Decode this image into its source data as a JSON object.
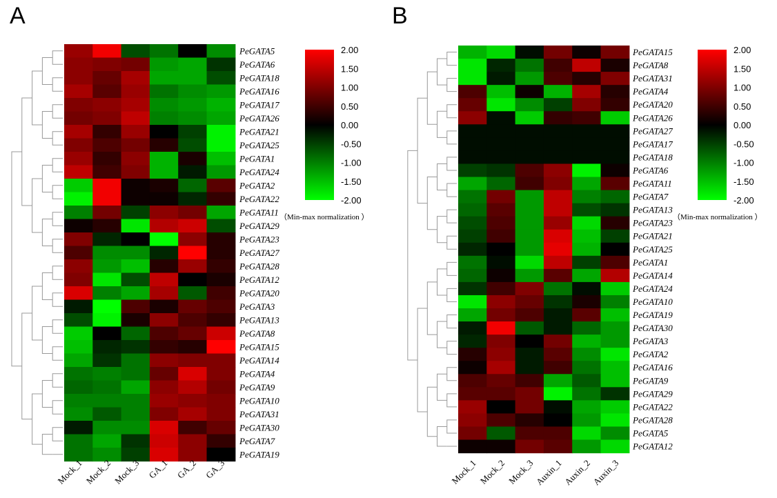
{
  "chart_data": [
    {
      "type": "heatmap",
      "panel_label": "A",
      "columns": [
        "Mock_1",
        "Mock_2",
        "Mock_3",
        "GA_1",
        "GA_2",
        "GA_3"
      ],
      "rows": [
        "PeGATA5",
        "PeGATA6",
        "PeGATA18",
        "PeGATA16",
        "PeGATA17",
        "PeGATA26",
        "PeGATA21",
        "PeGATA25",
        "PeGATA1",
        "PeGATA24",
        "PeGATA2",
        "PeGATA22",
        "PeGATA11",
        "PeGATA29",
        "PeGATA23",
        "PeGATA27",
        "PeGATA28",
        "PeGATA12",
        "PeGATA20",
        "PeGATA3",
        "PeGATA13",
        "PeGATA8",
        "PeGATA15",
        "PeGATA14",
        "PeGATA4",
        "PeGATA9",
        "PeGATA10",
        "PeGATA31",
        "PeGATA30",
        "PeGATA7",
        "PeGATA19"
      ],
      "values": [
        [
          1.2,
          1.9,
          -0.6,
          -0.9,
          0.0,
          -1.1
        ],
        [
          1.1,
          1.0,
          0.9,
          -1.2,
          -1.3,
          -0.4
        ],
        [
          1.1,
          0.8,
          1.3,
          -1.3,
          -1.3,
          -0.6
        ],
        [
          1.3,
          0.7,
          1.2,
          -0.9,
          -1.1,
          -1.2
        ],
        [
          1.0,
          1.1,
          1.3,
          -1.1,
          -1.2,
          -1.4
        ],
        [
          0.9,
          1.0,
          1.5,
          -1.0,
          -1.1,
          -1.3
        ],
        [
          1.3,
          0.4,
          1.2,
          0.0,
          -0.5,
          -1.9
        ],
        [
          1.0,
          0.6,
          0.9,
          0.3,
          -0.6,
          -1.9
        ],
        [
          1.2,
          0.4,
          1.1,
          -1.4,
          0.2,
          -1.5
        ],
        [
          1.5,
          0.5,
          1.0,
          -1.4,
          -0.2,
          -1.2
        ],
        [
          -1.6,
          1.9,
          0.1,
          0.2,
          -0.8,
          0.7
        ],
        [
          -1.9,
          1.9,
          0.1,
          0.1,
          -0.3,
          0.4
        ],
        [
          -1.0,
          0.9,
          -0.5,
          1.1,
          0.9,
          -1.3
        ],
        [
          0.1,
          0.3,
          -1.8,
          1.4,
          1.6,
          -0.6
        ],
        [
          1.0,
          -0.3,
          0.0,
          -2.0,
          1.1,
          0.3
        ],
        [
          0.6,
          -1.1,
          -1.1,
          -0.3,
          2.0,
          0.3
        ],
        [
          1.1,
          -1.2,
          -1.5,
          0.3,
          1.2,
          0.4
        ],
        [
          1.0,
          -1.8,
          -0.6,
          1.5,
          0.0,
          0.2
        ],
        [
          1.7,
          -1.0,
          -1.3,
          1.3,
          -0.7,
          0.5
        ],
        [
          -0.2,
          -2.0,
          0.6,
          0.2,
          0.8,
          0.6
        ],
        [
          -0.6,
          -1.9,
          0.2,
          1.1,
          0.6,
          0.4
        ],
        [
          -1.6,
          0.0,
          -0.8,
          0.6,
          0.8,
          1.6
        ],
        [
          -1.5,
          -0.3,
          -0.4,
          0.4,
          0.3,
          2.0
        ],
        [
          -1.3,
          -0.4,
          -0.9,
          1.1,
          1.0,
          1.0
        ],
        [
          -0.9,
          -1.0,
          -0.9,
          0.8,
          1.7,
          1.0
        ],
        [
          -0.8,
          -0.9,
          -1.3,
          1.1,
          1.4,
          0.9
        ],
        [
          -1.0,
          -1.0,
          -1.0,
          1.2,
          1.1,
          1.0
        ],
        [
          -1.1,
          -0.7,
          -1.0,
          1.0,
          1.3,
          1.0
        ],
        [
          -0.2,
          -1.1,
          -1.1,
          1.7,
          0.5,
          0.8
        ],
        [
          -0.9,
          -1.3,
          -0.4,
          1.6,
          1.1,
          0.4
        ],
        [
          -0.9,
          -1.1,
          -0.5,
          1.7,
          1.1,
          0.0
        ]
      ]
    },
    {
      "type": "heatmap",
      "panel_label": "B",
      "columns": [
        "Mock_1",
        "Mock_2",
        "Mock_3",
        "Auxin_1",
        "Auxin_2",
        "Auxin_3"
      ],
      "rows": [
        "PeGATA15",
        "PeGATA8",
        "PeGATA31",
        "PeGATA4",
        "PeGATA20",
        "PeGATA26",
        "PeGATA27",
        "PeGATA17",
        "PeGATA18",
        "PeGATA6",
        "PeGATA11",
        "PeGATA7",
        "PeGATA13",
        "PeGATA23",
        "PeGATA21",
        "PeGATA25",
        "PeGATA1",
        "PeGATA14",
        "PeGATA24",
        "PeGATA10",
        "PeGATA19",
        "PeGATA30",
        "PeGATA3",
        "PeGATA2",
        "PeGATA16",
        "PeGATA9",
        "PeGATA29",
        "PeGATA22",
        "PeGATA28",
        "PeGATA5",
        "PeGATA12"
      ],
      "values": [
        [
          -1.4,
          -1.7,
          -0.1,
          0.9,
          0.1,
          0.9
        ],
        [
          -1.8,
          -0.3,
          -0.9,
          0.5,
          1.5,
          0.2
        ],
        [
          -1.8,
          -0.2,
          -1.2,
          0.6,
          0.3,
          1.0
        ],
        [
          0.6,
          -1.5,
          0.1,
          -1.4,
          1.3,
          0.3
        ],
        [
          0.8,
          -1.8,
          -1.1,
          -0.5,
          1.0,
          0.4
        ],
        [
          1.1,
          -0.1,
          -1.6,
          0.4,
          0.5,
          -1.6
        ],
        [
          -0.1,
          -0.1,
          -0.1,
          -0.1,
          -0.1,
          -0.1
        ],
        [
          -0.1,
          -0.1,
          -0.1,
          -0.1,
          -0.1,
          -0.1
        ],
        [
          -0.1,
          -0.1,
          -0.1,
          -0.1,
          -0.1,
          -0.1
        ],
        [
          -0.5,
          -0.4,
          0.6,
          1.1,
          -1.9,
          0.1
        ],
        [
          -1.3,
          -0.8,
          0.5,
          1.0,
          -1.3,
          0.7
        ],
        [
          -0.9,
          0.9,
          -1.2,
          1.5,
          -1.0,
          -0.8
        ],
        [
          -0.8,
          0.7,
          -1.2,
          1.5,
          -0.6,
          -0.4
        ],
        [
          -0.6,
          0.6,
          -1.2,
          1.2,
          -1.7,
          0.3
        ],
        [
          -0.5,
          0.5,
          -1.2,
          1.7,
          -1.5,
          -0.5
        ],
        [
          -0.3,
          0.0,
          -1.2,
          1.8,
          -1.4,
          0.0
        ],
        [
          -0.9,
          -0.1,
          -1.7,
          1.5,
          -0.5,
          0.6
        ],
        [
          -0.8,
          0.1,
          -1.2,
          0.7,
          -1.3,
          1.4
        ],
        [
          -0.4,
          0.5,
          1.0,
          -0.9,
          -0.1,
          -1.6
        ],
        [
          -1.8,
          1.1,
          0.8,
          -0.4,
          0.2,
          -1.0
        ],
        [
          -1.3,
          0.9,
          0.6,
          -0.2,
          0.7,
          -1.5
        ],
        [
          -0.2,
          1.9,
          -0.7,
          -0.2,
          -0.8,
          -1.2
        ],
        [
          -0.3,
          1.0,
          0.0,
          0.9,
          -1.4,
          -1.2
        ],
        [
          0.3,
          1.1,
          -0.2,
          0.7,
          -1.1,
          -1.8
        ],
        [
          0.1,
          1.3,
          -0.2,
          0.5,
          -0.9,
          -1.5
        ],
        [
          0.6,
          0.8,
          0.5,
          -1.3,
          -0.7,
          -1.5
        ],
        [
          0.7,
          0.7,
          0.9,
          -1.9,
          -0.9,
          -0.4
        ],
        [
          1.2,
          0.0,
          0.9,
          -0.1,
          -1.3,
          -1.6
        ],
        [
          1.1,
          0.6,
          0.3,
          0.0,
          -1.2,
          -1.8
        ],
        [
          0.9,
          -0.7,
          0.6,
          0.6,
          -1.7,
          -1.1
        ],
        [
          0.1,
          0.1,
          0.9,
          0.7,
          -1.2,
          -1.7
        ]
      ]
    }
  ],
  "legend": {
    "ticks": [
      "2.00",
      "1.50",
      "1.00",
      "0.50",
      "0.00",
      "-0.50",
      "-1.00",
      "-1.50",
      "-2.00"
    ],
    "note": "（Min-max normalization ）",
    "colors": {
      "high": "#ff0000",
      "mid": "#000000",
      "low": "#00ff00"
    },
    "range": [
      -2,
      2
    ]
  }
}
